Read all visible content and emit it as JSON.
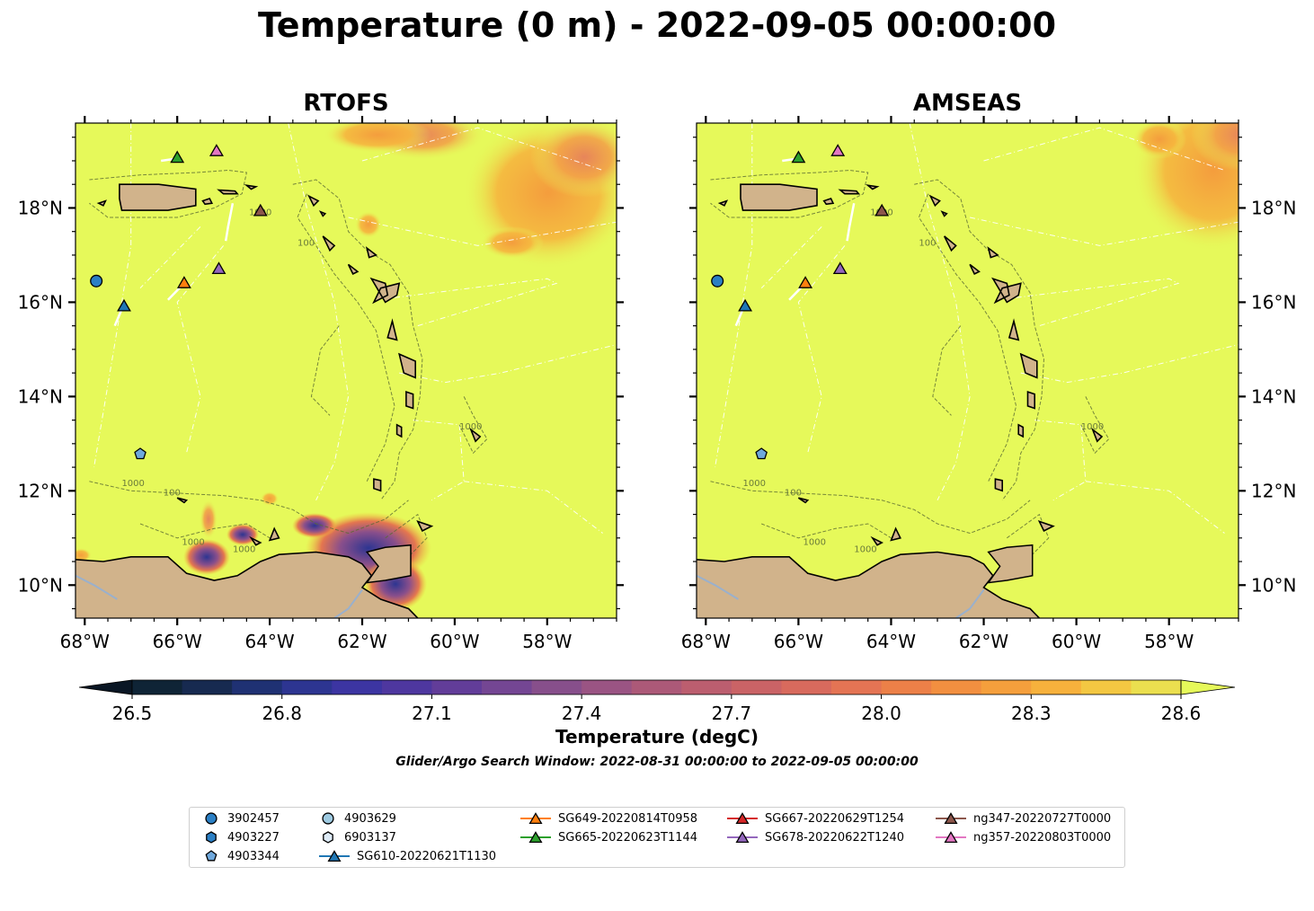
{
  "title": "Temperature (0 m) - 2022-09-05 00:00:00",
  "panels": [
    {
      "title": "RTOFS"
    },
    {
      "title": "AMSEAS"
    }
  ],
  "map": {
    "lon_range": [
      -68.2,
      -56.5
    ],
    "lat_range": [
      9.3,
      19.8
    ],
    "lon_ticks": [
      -68,
      -66,
      -64,
      -62,
      -60,
      -58
    ],
    "lon_tick_labels": [
      "68°W",
      "66°W",
      "64°W",
      "62°W",
      "60°W",
      "58°W"
    ],
    "lat_ticks": [
      10,
      12,
      14,
      16,
      18
    ],
    "lat_tick_labels": [
      "10°N",
      "12°N",
      "14°N",
      "16°N",
      "18°N"
    ],
    "bathymetry_contour_labels": [
      "100",
      "1000"
    ],
    "colors": {
      "ocean": "#e6f95a",
      "land": "#d1b38b",
      "rivers": "#9ab0cc",
      "contour": "#5a6a32"
    }
  },
  "colorbar": {
    "label": "Temperature (degC)",
    "min": 26.5,
    "max": 28.6,
    "ticks": [
      26.5,
      26.8,
      27.1,
      27.4,
      27.7,
      28.0,
      28.3,
      28.6
    ],
    "tick_labels": [
      "26.5",
      "26.8",
      "27.1",
      "27.4",
      "27.7",
      "28.0",
      "28.3",
      "28.6"
    ],
    "colors": [
      "#0f2436",
      "#172a50",
      "#1f3173",
      "#2d3591",
      "#3c35a2",
      "#4e379f",
      "#623d99",
      "#744693",
      "#874f8b",
      "#9a5483",
      "#ac5978",
      "#bc5e6f",
      "#ca6366",
      "#d86a5d",
      "#e47454",
      "#ec8048",
      "#f28f40",
      "#f59f3c",
      "#f7b13c",
      "#f3c742",
      "#ebdf4f"
    ],
    "extend_low": "#0a1624",
    "extend_high": "#e6f95a"
  },
  "search_window": "Glider/Argo Search Window: 2022-08-31 00:00:00 to 2022-09-05 00:00:00",
  "observations": [
    {
      "id": "3902457",
      "kind": "argo",
      "marker": "circle",
      "color": "#2b7fc4",
      "lon": -67.75,
      "lat": 16.45
    },
    {
      "id": "4903344",
      "kind": "argo",
      "marker": "pentagon",
      "color": "#6fa8dc",
      "lon": -66.8,
      "lat": 12.78
    },
    {
      "id": "SG610-20220621T1130",
      "kind": "glider",
      "marker": "triangle",
      "color": "#1f77b4",
      "lon": -67.15,
      "lat": 15.93
    },
    {
      "id": "SG649-20220814T0958",
      "kind": "glider",
      "marker": "triangle",
      "color": "#ff7f0e",
      "lon": -65.85,
      "lat": 16.42
    },
    {
      "id": "SG665-20220623T1144",
      "kind": "glider",
      "marker": "triangle",
      "color": "#2ca02c",
      "lon": -66.0,
      "lat": 19.08
    },
    {
      "id": "SG678-20220622T1240",
      "kind": "glider",
      "marker": "triangle",
      "color": "#9467bd",
      "lon": -65.1,
      "lat": 16.72
    },
    {
      "id": "ng347-20220727T0000",
      "kind": "glider",
      "marker": "triangle",
      "color": "#8c564b",
      "lon": -64.2,
      "lat": 17.95
    },
    {
      "id": "ng357-20220803T0000",
      "kind": "glider",
      "marker": "triangle",
      "color": "#e377c2",
      "lon": -65.15,
      "lat": 19.22
    }
  ],
  "legend": [
    {
      "label": "3902457",
      "marker": "circle",
      "color": "#2b7fc4",
      "line": false
    },
    {
      "label": "4903227",
      "marker": "hexagon",
      "color": "#2b7fc4",
      "line": false
    },
    {
      "label": "4903344",
      "marker": "pentagon",
      "color": "#6fa8dc",
      "line": false
    },
    {
      "label": "4903629",
      "marker": "circle",
      "color": "#9ecae1",
      "line": false
    },
    {
      "label": "6903137",
      "marker": "hexagon",
      "color": "#deebf7",
      "line": false
    },
    {
      "label": "SG610-20220621T1130",
      "marker": "triangle",
      "color": "#1f77b4",
      "line": true
    },
    {
      "label": "SG649-20220814T0958",
      "marker": "triangle",
      "color": "#ff7f0e",
      "line": true
    },
    {
      "label": "SG665-20220623T1144",
      "marker": "triangle",
      "color": "#2ca02c",
      "line": true
    },
    {
      "label": "SG667-20220629T1254",
      "marker": "triangle",
      "color": "#d62728",
      "line": true
    },
    {
      "label": "SG678-20220622T1240",
      "marker": "triangle",
      "color": "#9467bd",
      "line": true
    },
    {
      "label": "ng347-20220727T0000",
      "marker": "triangle",
      "color": "#8c564b",
      "line": true
    },
    {
      "label": "ng357-20220803T0000",
      "marker": "triangle",
      "color": "#e377c2",
      "line": true
    }
  ]
}
